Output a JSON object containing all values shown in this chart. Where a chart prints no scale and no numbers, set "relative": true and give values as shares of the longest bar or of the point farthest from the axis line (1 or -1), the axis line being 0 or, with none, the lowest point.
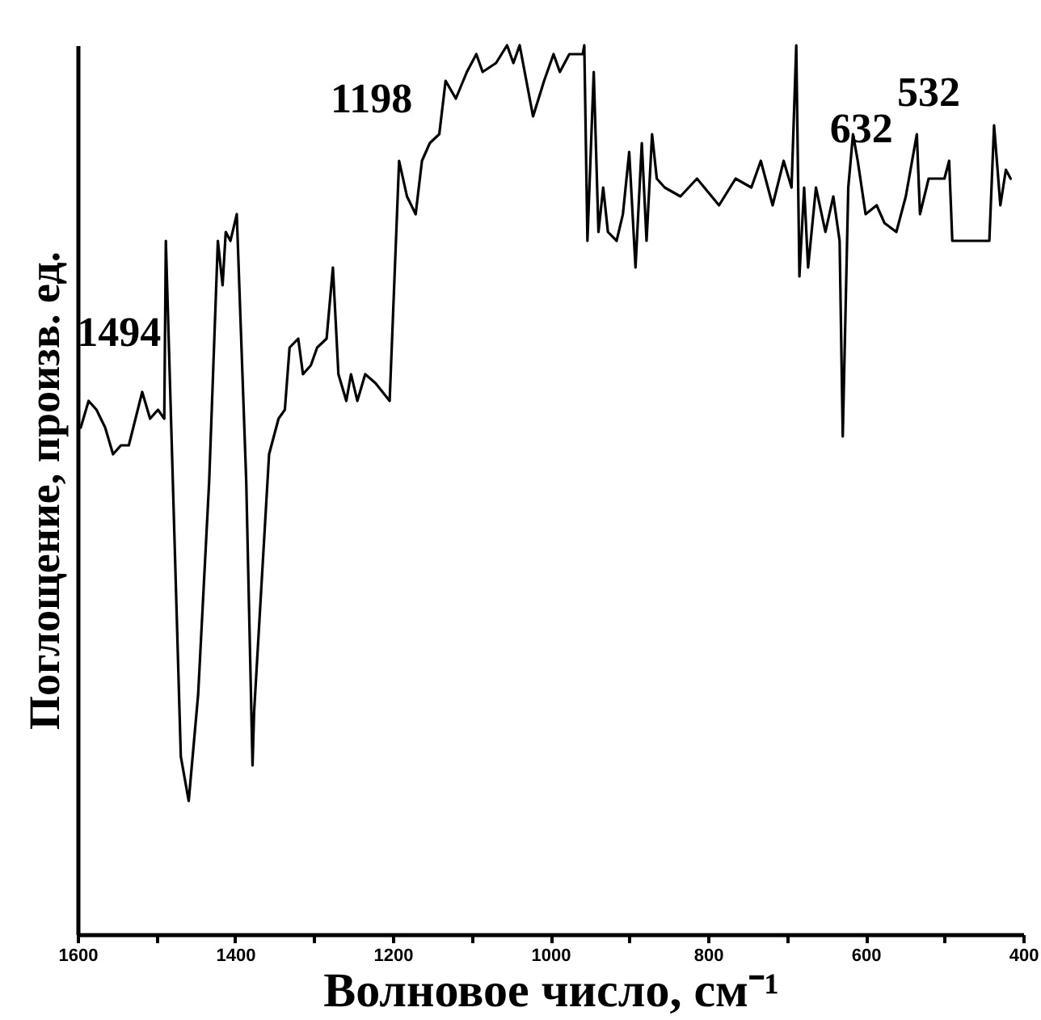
{
  "chart_data": {
    "type": "line",
    "relative": true,
    "xlabel": "Волновое число, см⁻¹",
    "ylabel": "Поглощение, произв. ед.",
    "xlim": [
      1600,
      400
    ],
    "xticks": [
      1600,
      {
        "value": 1500,
        "label": null
      },
      1400,
      {
        "value": 1300,
        "label": null
      },
      1200,
      {
        "value": 1100,
        "label": null
      },
      1000,
      {
        "value": 900,
        "label": null
      },
      800,
      {
        "value": 700,
        "label": null
      },
      600,
      {
        "value": 500,
        "label": null
      },
      400
    ],
    "series": [
      {
        "color": "#000000",
        "x": [
          1596,
          1586,
          1576,
          1565,
          1555,
          1545,
          1535,
          1518,
          1508,
          1498,
          1490,
          1488,
          1469,
          1459,
          1447,
          1433,
          1422,
          1416,
          1412,
          1406,
          1398,
          1386,
          1378,
          1376,
          1357,
          1345,
          1337,
          1331,
          1320,
          1314,
          1304,
          1296,
          1284,
          1276,
          1269,
          1259,
          1253,
          1245,
          1235,
          1222,
          1204,
          1192,
          1182,
          1171,
          1163,
          1153,
          1141,
          1133,
          1120,
          1106,
          1094,
          1086,
          1069,
          1055,
          1047,
          1039,
          1022,
          1008,
          996,
          988,
          976,
          959,
          957,
          953,
          945,
          939,
          933,
          927,
          916,
          908,
          900,
          892,
          884,
          878,
          871,
          865,
          855,
          835,
          814,
          786,
          765,
          745,
          733,
          718,
          704,
          694,
          688,
          684,
          678,
          673,
          663,
          651,
          641,
          633,
          629,
          622,
          616,
          610,
          600,
          586,
          576,
          561,
          549,
          535,
          531,
          520,
          500,
          494,
          490,
          443,
          437,
          429,
          422,
          416
        ],
        "values": [
          0.57,
          0.6,
          0.59,
          0.57,
          0.54,
          0.55,
          0.55,
          0.61,
          0.58,
          0.59,
          0.58,
          0.78,
          0.2,
          0.15,
          0.27,
          0.51,
          0.78,
          0.73,
          0.79,
          0.78,
          0.81,
          0.51,
          0.19,
          0.25,
          0.54,
          0.58,
          0.59,
          0.66,
          0.67,
          0.63,
          0.64,
          0.66,
          0.67,
          0.75,
          0.63,
          0.6,
          0.63,
          0.6,
          0.63,
          0.62,
          0.6,
          0.87,
          0.83,
          0.81,
          0.87,
          0.89,
          0.9,
          0.96,
          0.94,
          0.97,
          0.99,
          0.97,
          0.98,
          1.0,
          0.98,
          1.0,
          0.92,
          0.96,
          0.99,
          0.97,
          0.99,
          0.99,
          1.0,
          0.78,
          0.97,
          0.79,
          0.84,
          0.79,
          0.78,
          0.81,
          0.88,
          0.75,
          0.89,
          0.78,
          0.9,
          0.85,
          0.84,
          0.83,
          0.85,
          0.82,
          0.85,
          0.84,
          0.87,
          0.82,
          0.87,
          0.84,
          1.0,
          0.74,
          0.84,
          0.75,
          0.84,
          0.79,
          0.83,
          0.78,
          0.56,
          0.84,
          0.9,
          0.87,
          0.81,
          0.82,
          0.8,
          0.79,
          0.83,
          0.9,
          0.81,
          0.85,
          0.85,
          0.87,
          0.78,
          0.78,
          0.91,
          0.82,
          0.86,
          0.85
        ]
      }
    ],
    "annotations": [
      {
        "text": "1494",
        "x": 1490,
        "y": 0.58
      },
      {
        "text": "1198",
        "x": 1171,
        "y": 0.81
      },
      {
        "text": "632",
        "x": 633,
        "y": 0.78
      },
      {
        "text": "532",
        "x": 520,
        "y": 0.85
      }
    ]
  }
}
